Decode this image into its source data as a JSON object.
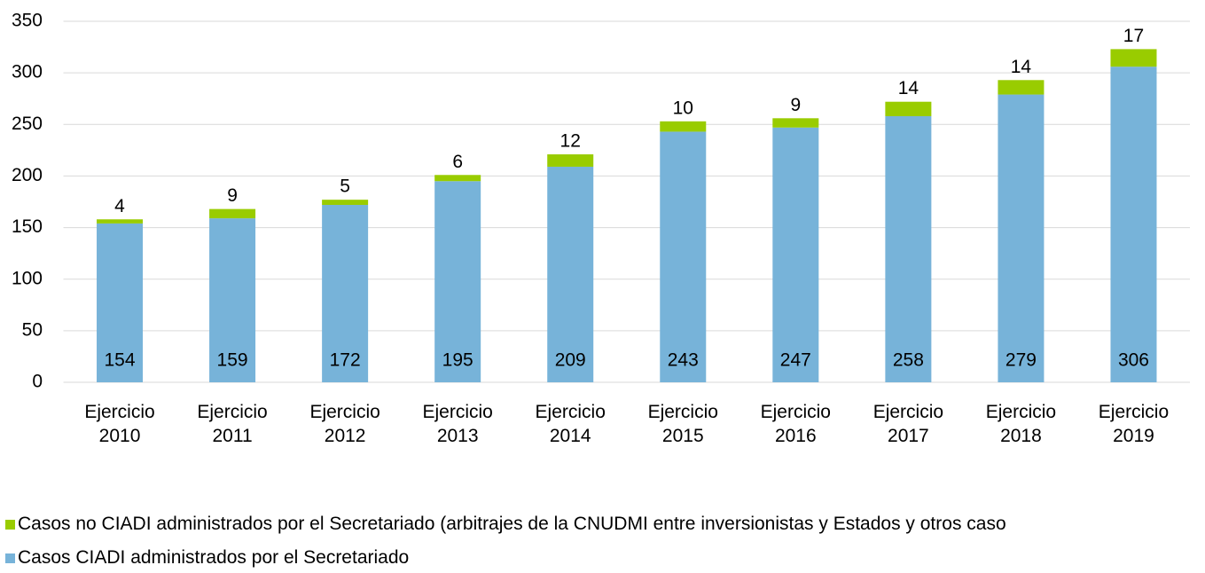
{
  "chart_data": {
    "type": "stacked_bar",
    "categories": [
      "Ejercicio 2010",
      "Ejercicio 2011",
      "Ejercicio 2012",
      "Ejercicio 2013",
      "Ejercicio 2014",
      "Ejercicio 2015",
      "Ejercicio 2016",
      "Ejercicio 2017",
      "Ejercicio 2018",
      "Ejercicio 2019"
    ],
    "series": [
      {
        "name": "Casos CIADI administrados por el Secretariado",
        "color": "#77b3d9",
        "values": [
          154,
          159,
          172,
          195,
          209,
          243,
          247,
          258,
          279,
          306
        ]
      },
      {
        "name": "Casos no CIADI administrados por el Secretariado (arbitrajes de la CNUDMI entre inversionistas y Estados y otros caso",
        "color": "#99cc00",
        "values": [
          4,
          9,
          5,
          6,
          12,
          10,
          9,
          14,
          14,
          17
        ]
      }
    ],
    "ylim": [
      0,
      350
    ],
    "yticks": [
      0,
      50,
      100,
      150,
      200,
      250,
      300,
      350
    ],
    "grid": true
  }
}
